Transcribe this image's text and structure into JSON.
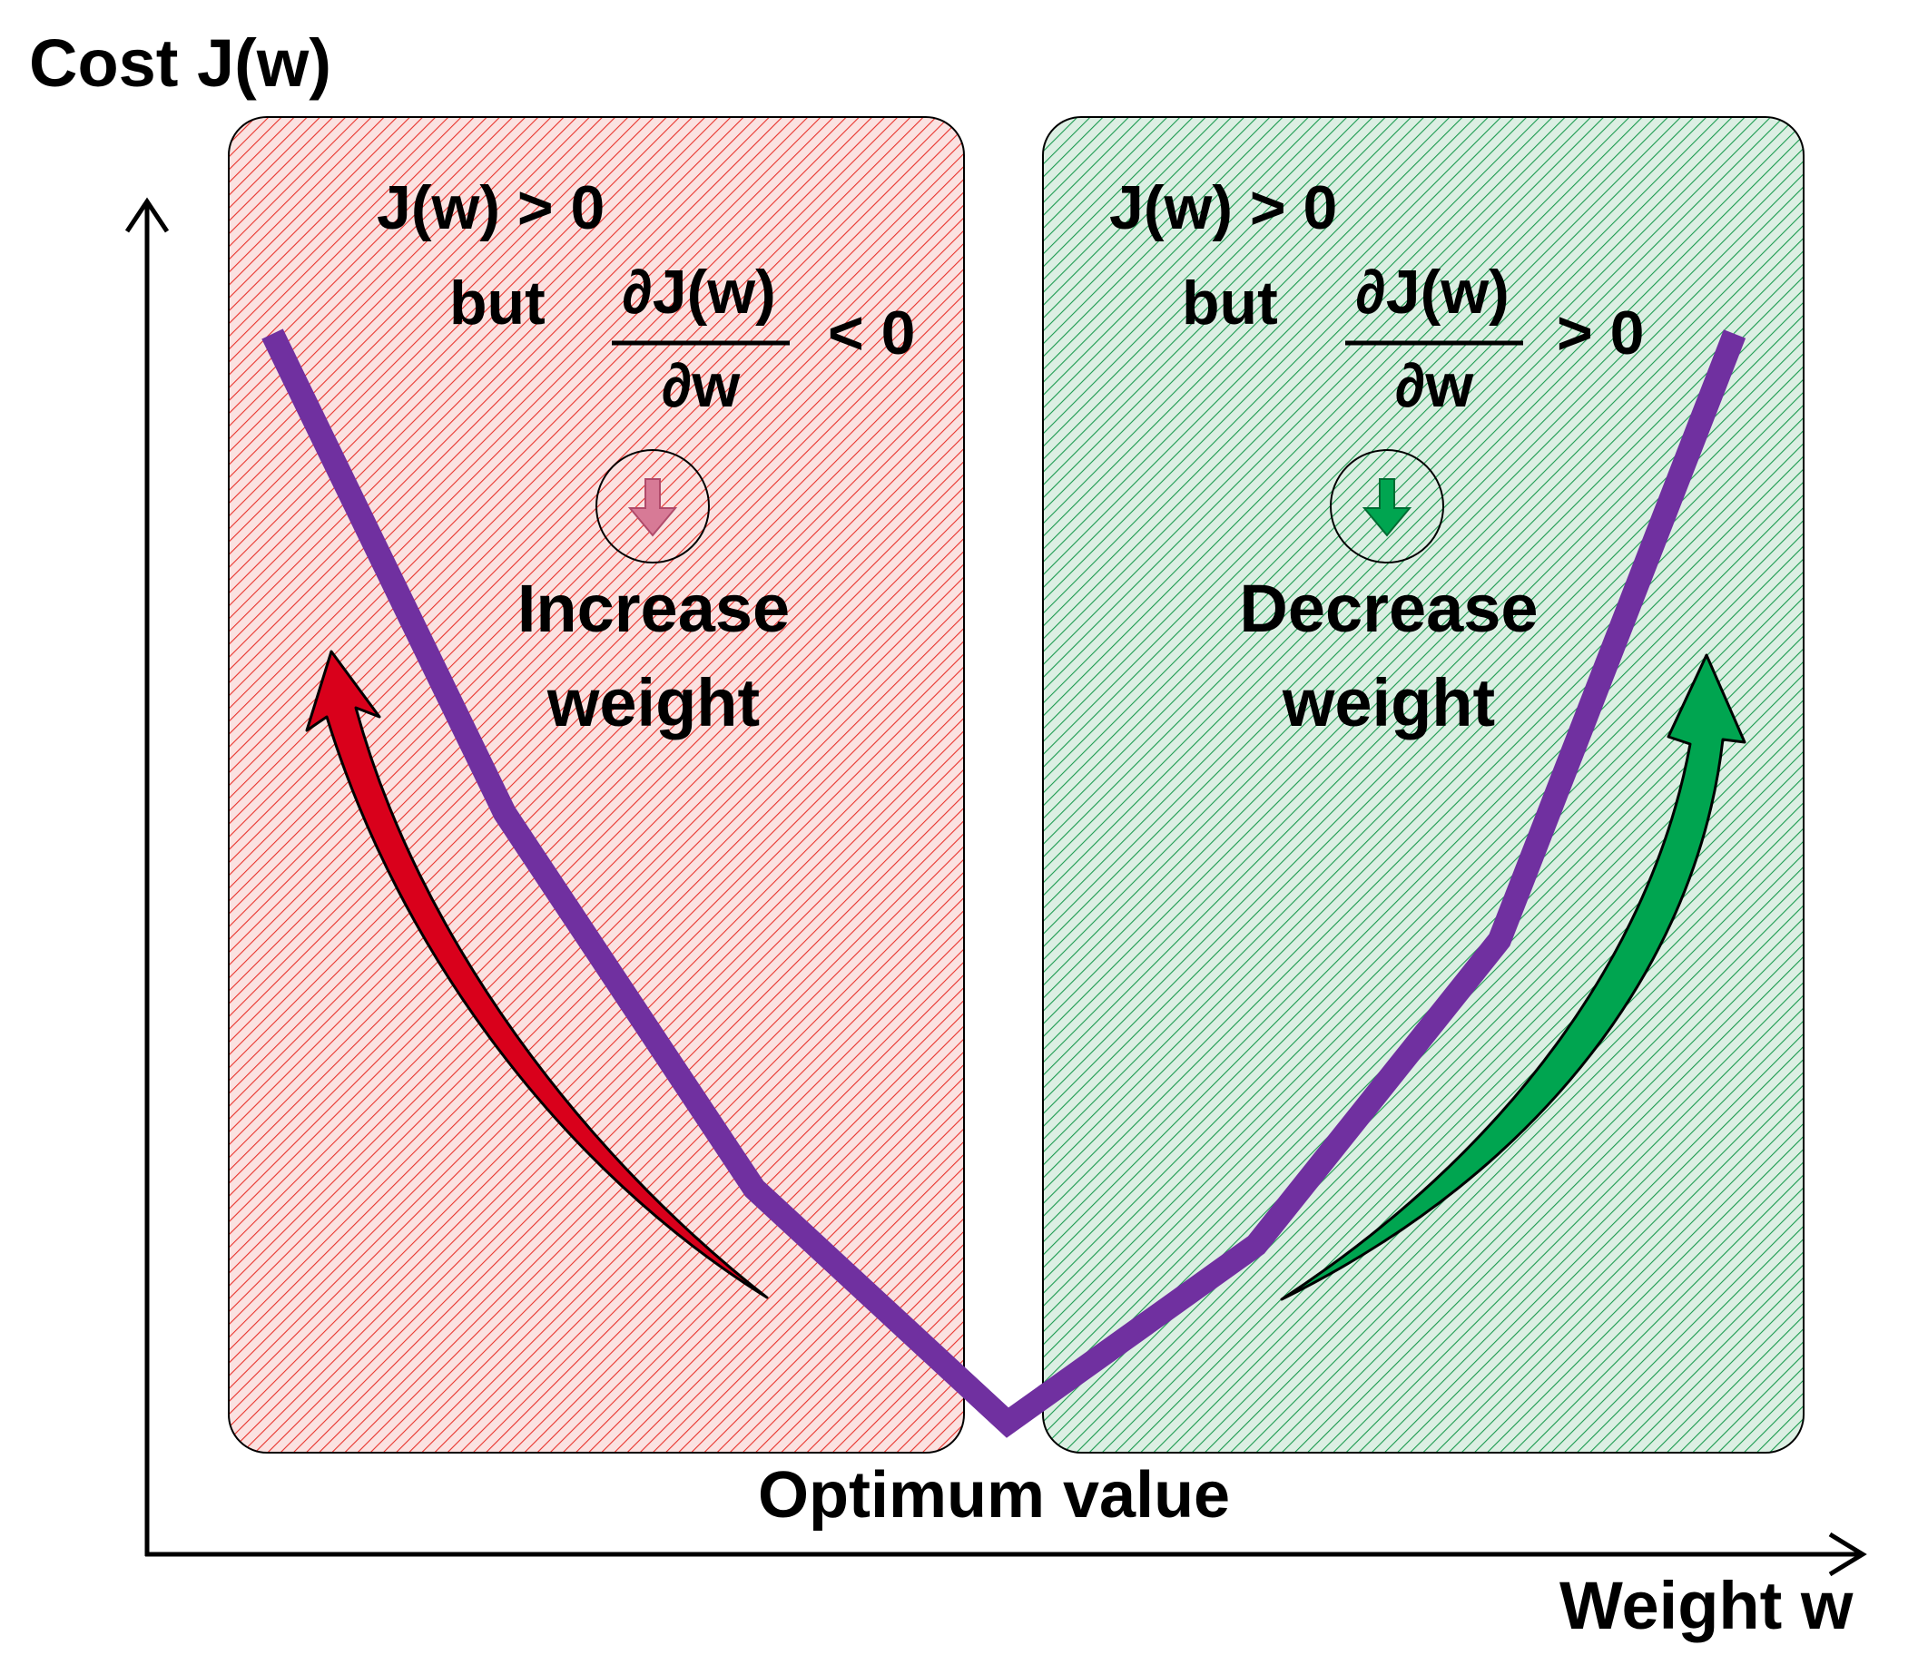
{
  "axes": {
    "y_label": "Cost J(w)",
    "x_label": "Weight w",
    "optimum_label": "Optimum value"
  },
  "left_region": {
    "condition_line": "J(w) > 0",
    "but_label": "but",
    "derivative_numerator": "∂J(w)",
    "derivative_denominator": "∂w",
    "comparison": "< 0",
    "action_line1": "Increase",
    "action_line2": "weight",
    "hatch_color": "#e8332c",
    "fill_color": "#fbe2e1",
    "arrow_color": "#d9001b",
    "indicator_color": "#d77a96"
  },
  "right_region": {
    "condition_line": "J(w) > 0",
    "but_label": "but",
    "derivative_numerator": "∂J(w)",
    "derivative_denominator": "∂w",
    "comparison": "> 0",
    "action_line1": "Decrease",
    "action_line2": "weight",
    "hatch_color": "#1b9a4f",
    "fill_color": "#dcefe3",
    "arrow_color": "#00a550",
    "indicator_color": "#00a550"
  },
  "cost_curve": {
    "color": "#7030a0"
  }
}
